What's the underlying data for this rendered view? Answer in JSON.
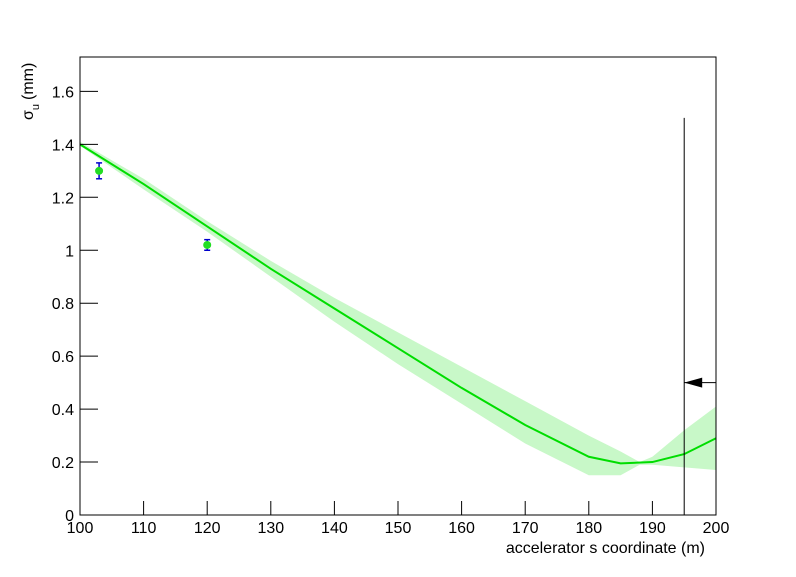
{
  "chart_data": {
    "type": "fit",
    "y_label": {
      "symbol": "σ",
      "subscript": "u",
      "unit": "(mm)"
    },
    "x_label": "accelerator s coordinate (m)",
    "xlim": [
      100,
      200
    ],
    "ylim": [
      0,
      1.73
    ],
    "xticks": [
      100,
      110,
      120,
      130,
      140,
      150,
      160,
      170,
      180,
      190,
      200
    ],
    "yticks": [
      0,
      0.2,
      0.4,
      0.6,
      0.8,
      1,
      1.2,
      1.4,
      1.6
    ],
    "band": {
      "color": "#c8f8c8",
      "x": [
        100,
        110,
        120,
        130,
        140,
        150,
        160,
        170,
        180,
        185,
        188,
        190,
        195,
        200
      ],
      "lower": [
        1.395,
        1.23,
        1.07,
        0.9,
        0.73,
        0.57,
        0.42,
        0.27,
        0.15,
        0.15,
        0.19,
        0.19,
        0.18,
        0.17
      ],
      "upper": [
        1.41,
        1.27,
        1.11,
        0.96,
        0.82,
        0.69,
        0.56,
        0.43,
        0.3,
        0.24,
        0.2,
        0.22,
        0.32,
        0.41
      ]
    },
    "fit": {
      "color": "#00dd00",
      "x": [
        100,
        110,
        120,
        130,
        140,
        150,
        160,
        170,
        180,
        185,
        190,
        195,
        200
      ],
      "values": [
        1.4,
        1.25,
        1.09,
        0.93,
        0.78,
        0.63,
        0.48,
        0.34,
        0.22,
        0.195,
        0.2,
        0.23,
        0.29
      ]
    },
    "points": {
      "color": "#22dd22",
      "error_color": "#0000cc",
      "x": [
        103,
        120
      ],
      "values": [
        1.3,
        1.02
      ],
      "errors": [
        0.03,
        0.02
      ]
    },
    "limit": {
      "x": 195,
      "y_top": 1.5,
      "arrow_y": 0.5
    }
  }
}
